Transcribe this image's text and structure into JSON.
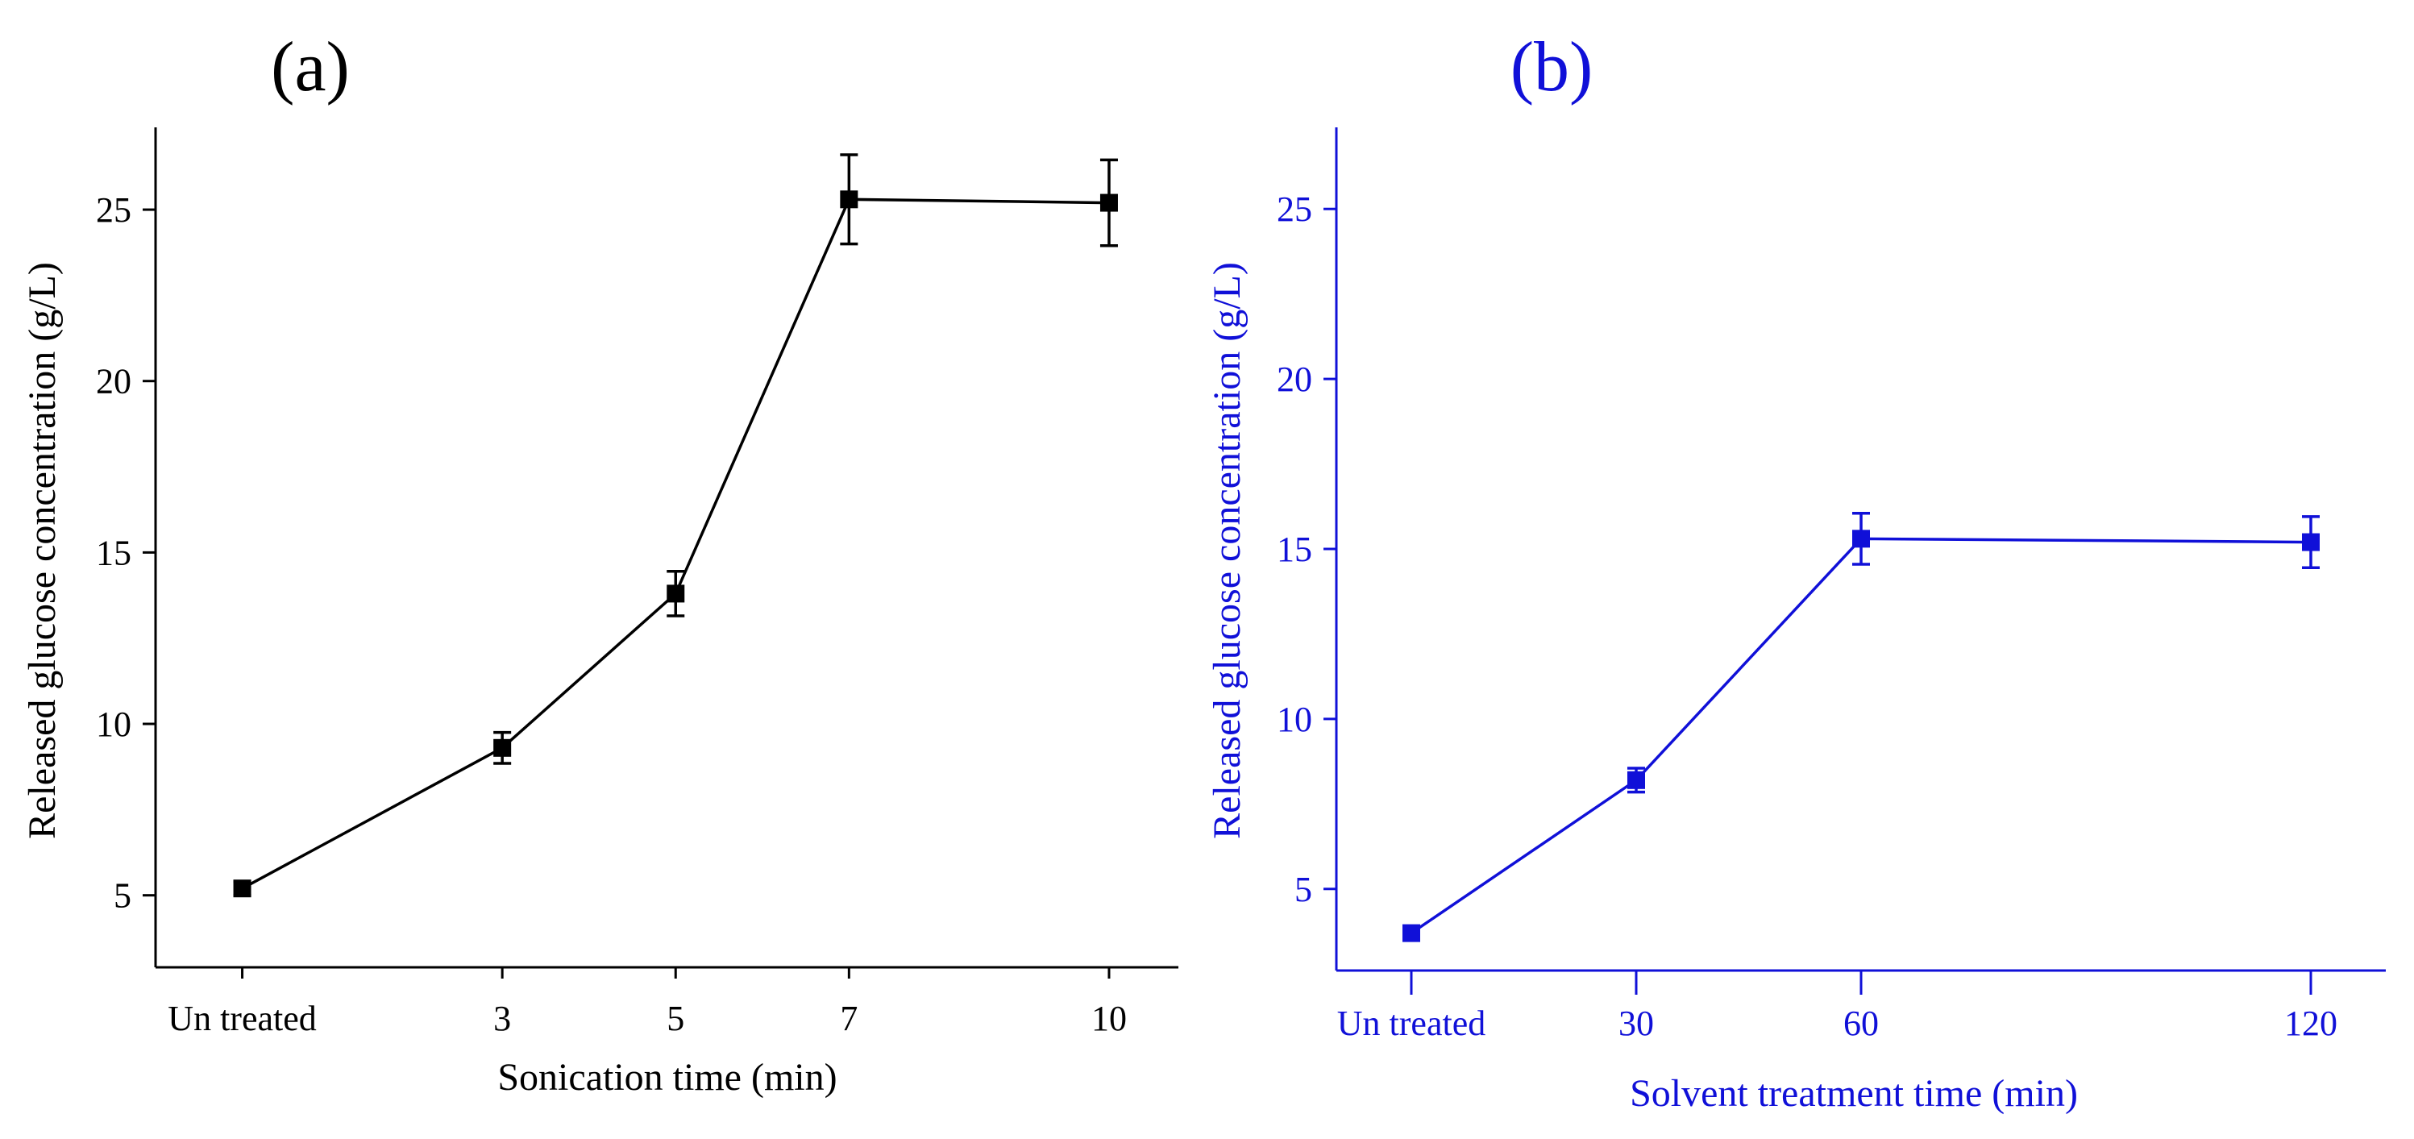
{
  "chart_data": [
    {
      "type": "line",
      "panel_label": "(a)",
      "color": "#000000",
      "title": "",
      "xlabel": "Sonication time (min)",
      "ylabel": "Released glucose concentration (g/L)",
      "categories": [
        "Un treated",
        "3",
        "5",
        "7",
        "10"
      ],
      "x": [
        0,
        3,
        5,
        7,
        10
      ],
      "values": [
        5.2,
        9.3,
        13.8,
        25.3,
        25.2
      ],
      "errors": [
        0.2,
        0.45,
        0.65,
        1.3,
        1.25
      ],
      "yticks": [
        5,
        10,
        15,
        20,
        25
      ],
      "ylim": [
        2.9,
        27.4
      ],
      "xlim": [
        -1.0,
        10.8
      ],
      "grid": false,
      "legend": "none"
    },
    {
      "type": "line",
      "panel_label": "(b)",
      "color": "#1010d8",
      "title": "",
      "xlabel": "Solvent treatment time (min)",
      "ylabel": "Released glucose concentration (g/L)",
      "categories": [
        "Un treated",
        "30",
        "60",
        "120"
      ],
      "x": [
        0,
        30,
        60,
        120
      ],
      "values": [
        3.7,
        8.2,
        15.3,
        15.2
      ],
      "errors": [
        0.15,
        0.35,
        0.75,
        0.75
      ],
      "yticks": [
        5,
        10,
        15,
        20,
        25
      ],
      "ylim": [
        2.6,
        27.4
      ],
      "xlim": [
        -10,
        130
      ],
      "grid": false,
      "legend": "none"
    }
  ]
}
